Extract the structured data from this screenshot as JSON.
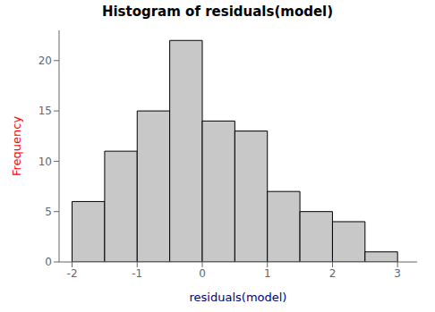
{
  "chart_data": {
    "type": "histogram",
    "title": "Histogram of residuals(model)",
    "xlabel": "residuals(model)",
    "ylabel": "Frequency",
    "bins": [
      -2.0,
      -1.5,
      -1.0,
      -0.5,
      0.0,
      0.5,
      1.0,
      1.5,
      2.0,
      2.5,
      3.0
    ],
    "values": [
      6,
      11,
      15,
      22,
      14,
      13,
      7,
      5,
      4,
      1
    ],
    "color": "#c8c8c8",
    "xlim": [
      -2.2,
      3.3
    ],
    "ylim": [
      0,
      23
    ],
    "xticks": [
      -2,
      -1,
      0,
      1,
      2,
      3
    ],
    "yticks": [
      0,
      5,
      10,
      15,
      20
    ]
  }
}
